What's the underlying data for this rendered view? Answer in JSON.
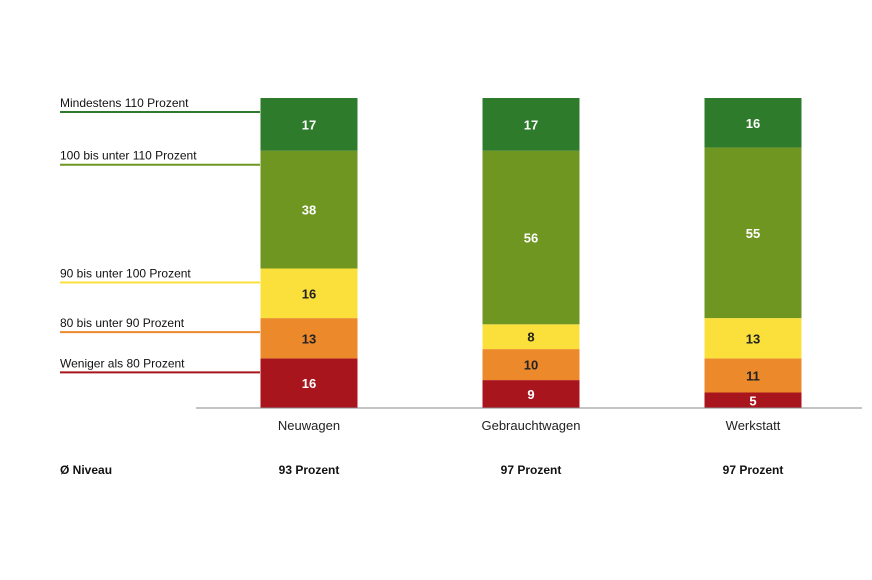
{
  "chart_data": {
    "type": "bar",
    "stacked": true,
    "categories": [
      "Neuwagen",
      "Gebrauchtwagen",
      "Werkstatt"
    ],
    "series": [
      {
        "name": "Weniger als 80 Prozent",
        "values": [
          16,
          9,
          5
        ],
        "color": "#a8151d",
        "label_color": "#ffffff"
      },
      {
        "name": "80 bis unter 90 Prozent",
        "values": [
          13,
          10,
          11
        ],
        "color": "#ec8a2b",
        "label_color": "#222222"
      },
      {
        "name": "90 bis unter 100 Prozent",
        "values": [
          16,
          8,
          13
        ],
        "color": "#fbe03c",
        "label_color": "#222222"
      },
      {
        "name": "100 bis unter 110 Prozent",
        "values": [
          38,
          56,
          55
        ],
        "color": "#6f9621",
        "label_color": "#ffffff"
      },
      {
        "name": "Mindestens 110 Prozent",
        "values": [
          17,
          17,
          16
        ],
        "color": "#2f7b2c",
        "label_color": "#ffffff"
      }
    ],
    "legend_position": "left",
    "grid": false,
    "ylim": [
      0,
      100
    ]
  },
  "niveau": {
    "label": "Ø Niveau",
    "values": [
      "93 Prozent",
      "97 Prozent",
      "97 Prozent"
    ]
  }
}
